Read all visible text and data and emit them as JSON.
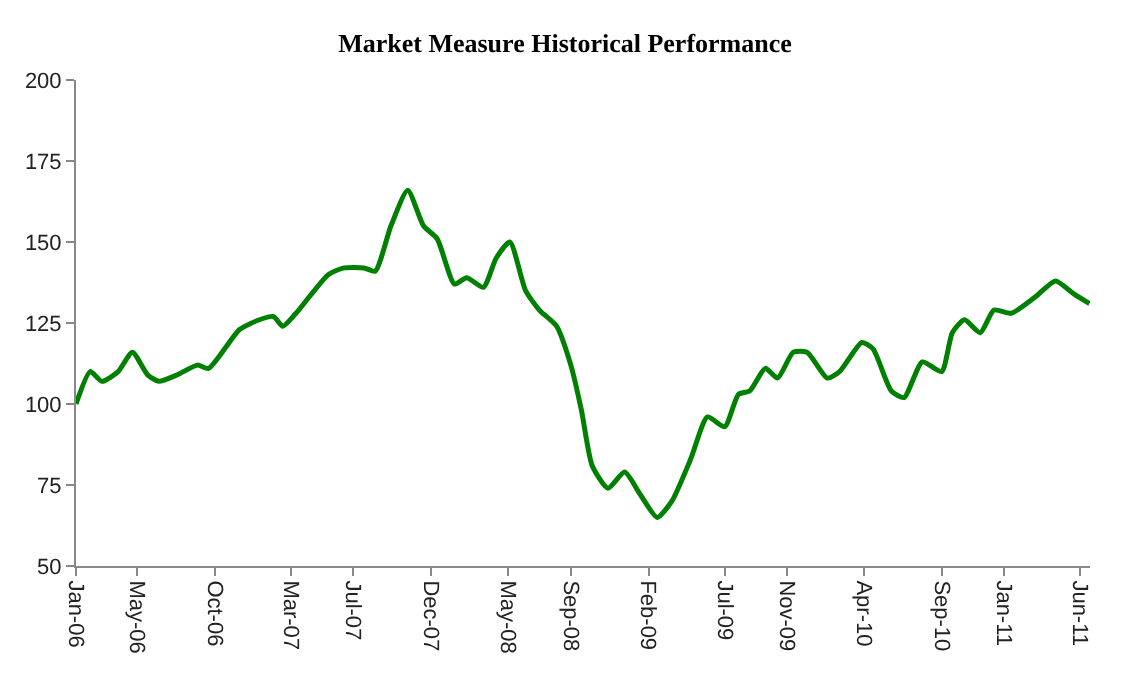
{
  "chart_data": {
    "type": "line",
    "title": "Market Measure Historical Performance",
    "x": [
      "2006-01-01",
      "2006-01-29",
      "2006-02-21",
      "2006-03-25",
      "2006-04-22",
      "2006-05-22",
      "2006-06-13",
      "2006-07-19",
      "2006-08-28",
      "2006-09-19",
      "2006-11-19",
      "2006-12-28",
      "2007-01-25",
      "2007-02-12",
      "2007-03-10",
      "2007-05-13",
      "2007-06-13",
      "2007-07-22",
      "2007-08-13",
      "2007-09-13",
      "2007-10-16",
      "2007-11-16",
      "2007-12-13",
      "2008-01-16",
      "2008-02-09",
      "2008-03-13",
      "2008-04-07",
      "2008-05-04",
      "2008-06-04",
      "2008-07-01",
      "2008-08-04",
      "2008-09-01",
      "2008-09-22",
      "2008-10-13",
      "2008-11-13",
      "2008-12-16",
      "2009-01-16",
      "2009-02-18",
      "2009-03-19",
      "2009-04-25",
      "2009-05-28",
      "2009-07-01",
      "2009-07-28",
      "2009-08-19",
      "2009-09-19",
      "2009-10-13",
      "2009-11-13",
      "2009-12-10",
      "2010-01-19",
      "2010-02-12",
      "2010-03-28",
      "2010-04-19",
      "2010-05-25",
      "2010-06-19",
      "2010-07-25",
      "2010-09-01",
      "2010-09-22",
      "2010-10-16",
      "2010-11-16",
      "2010-12-13",
      "2011-01-16",
      "2011-03-04",
      "2011-04-13",
      "2011-05-19",
      "2011-06-19"
    ],
    "series": [
      {
        "color": "#008000",
        "values": [
          100,
          110,
          107,
          110,
          116,
          109,
          107,
          109,
          112,
          111,
          123,
          126,
          127,
          124,
          128,
          140,
          142,
          142,
          141,
          155,
          166,
          155,
          151,
          137,
          139,
          136,
          145,
          150,
          135,
          129,
          124,
          112,
          98,
          81,
          74,
          79,
          72,
          65,
          70,
          83,
          96,
          93,
          103,
          104,
          111,
          108,
          116,
          116,
          108,
          110,
          119,
          117,
          104,
          102,
          113,
          110,
          122,
          126,
          122,
          129,
          128,
          133,
          138,
          134,
          131
        ]
      }
    ],
    "xlim": [
      "2006-01-01",
      "2011-06-20"
    ],
    "xticks": [
      {
        "value": "2006-01-01",
        "label": "Jan-06"
      },
      {
        "value": "2006-05-01",
        "label": "May-06"
      },
      {
        "value": "2006-10-01",
        "label": "Oct-06"
      },
      {
        "value": "2007-03-01",
        "label": "Mar-07"
      },
      {
        "value": "2007-07-01",
        "label": "Jul-07"
      },
      {
        "value": "2007-12-01",
        "label": "Dec-07"
      },
      {
        "value": "2008-05-01",
        "label": "May-08"
      },
      {
        "value": "2008-09-01",
        "label": "Sep-08"
      },
      {
        "value": "2009-02-01",
        "label": "Feb-09"
      },
      {
        "value": "2009-07-01",
        "label": "Jul-09"
      },
      {
        "value": "2009-11-01",
        "label": "Nov-09"
      },
      {
        "value": "2010-04-01",
        "label": "Apr-10"
      },
      {
        "value": "2010-09-01",
        "label": "Sep-10"
      },
      {
        "value": "2011-01-01",
        "label": "Jan-11"
      },
      {
        "value": "2011-06-01",
        "label": "Jun-11"
      }
    ],
    "ylim": [
      50,
      200
    ],
    "yticks": [
      50,
      75,
      100,
      125,
      150,
      175,
      200
    ],
    "marker": "none",
    "line_style": "solid"
  }
}
